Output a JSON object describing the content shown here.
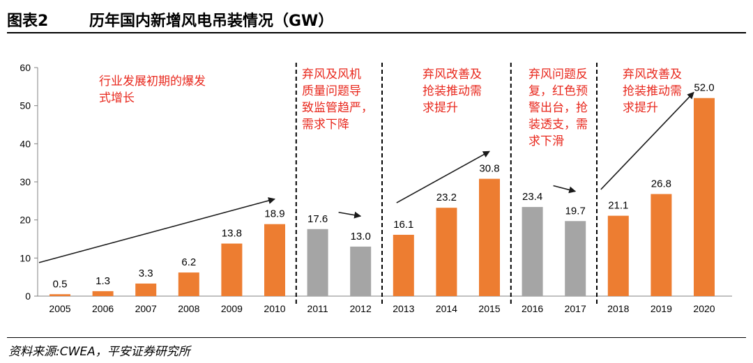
{
  "header": {
    "figure_no": "图表2",
    "title": "历年国内新增风电吊装情况（GW）"
  },
  "source": "资料来源:CWEA，平安证券研究所",
  "colors": {
    "orange": "#ED7D31",
    "gray": "#A5A5A5",
    "annotation": "#E8271C"
  },
  "chart_data": {
    "type": "bar",
    "title": "历年国内新增风电吊装情况（GW）",
    "xlabel": "",
    "ylabel": "",
    "ylim": [
      0,
      60
    ],
    "yticks": [
      "0",
      "10",
      "20",
      "30",
      "40",
      "50",
      "60"
    ],
    "categories": [
      "2005",
      "2006",
      "2007",
      "2008",
      "2009",
      "2010",
      "2011",
      "2012",
      "2013",
      "2014",
      "2015",
      "2016",
      "2017",
      "2018",
      "2019",
      "2020"
    ],
    "values": [
      0.5,
      1.3,
      3.3,
      6.2,
      13.8,
      18.9,
      17.6,
      13.0,
      16.1,
      23.2,
      30.8,
      23.4,
      19.7,
      21.1,
      26.8,
      52.0
    ],
    "value_labels": [
      "0.5",
      "1.3",
      "3.3",
      "6.2",
      "13.8",
      "18.9",
      "17.6",
      "13.0",
      "16.1",
      "23.2",
      "30.8",
      "23.4",
      "19.7",
      "21.1",
      "26.8",
      "52.0"
    ],
    "bar_colors": [
      "orange",
      "orange",
      "orange",
      "orange",
      "orange",
      "orange",
      "gray",
      "gray",
      "orange",
      "orange",
      "orange",
      "gray",
      "gray",
      "orange",
      "orange",
      "orange"
    ],
    "phases": [
      {
        "lines": [
          "行业发展初期的爆发",
          "式增长"
        ]
      },
      {
        "lines": [
          "弃风及风机",
          "质量问题导",
          "致监管趋严，",
          "需求下降"
        ]
      },
      {
        "lines": [
          "弃风改善及",
          "抢装推动需",
          "求提升"
        ]
      },
      {
        "lines": [
          "弃风问题反",
          "复，红色预",
          "警出台，抢",
          "装透支，需",
          "求下滑"
        ]
      },
      {
        "lines": [
          "弃风改善及",
          "抢装推动需",
          "求提升"
        ]
      }
    ],
    "trend_arrows": [
      {
        "from": [
          "2005",
          8.8
        ],
        "to": [
          "2010",
          25.5
        ]
      },
      {
        "from": [
          "2011",
          22.0
        ],
        "to": [
          "2012",
          21.0
        ]
      },
      {
        "from": [
          "2013",
          24.5
        ],
        "to": [
          "2015",
          38.0
        ]
      },
      {
        "from": [
          "2016",
          29.0
        ],
        "to": [
          "2017",
          27.5
        ]
      },
      {
        "from": [
          "2018",
          28.0
        ],
        "to": [
          "2020",
          53.5
        ]
      }
    ],
    "dividers_after": [
      "2010",
      "2012",
      "2015",
      "2017"
    ],
    "legend": "none",
    "grid": false
  }
}
